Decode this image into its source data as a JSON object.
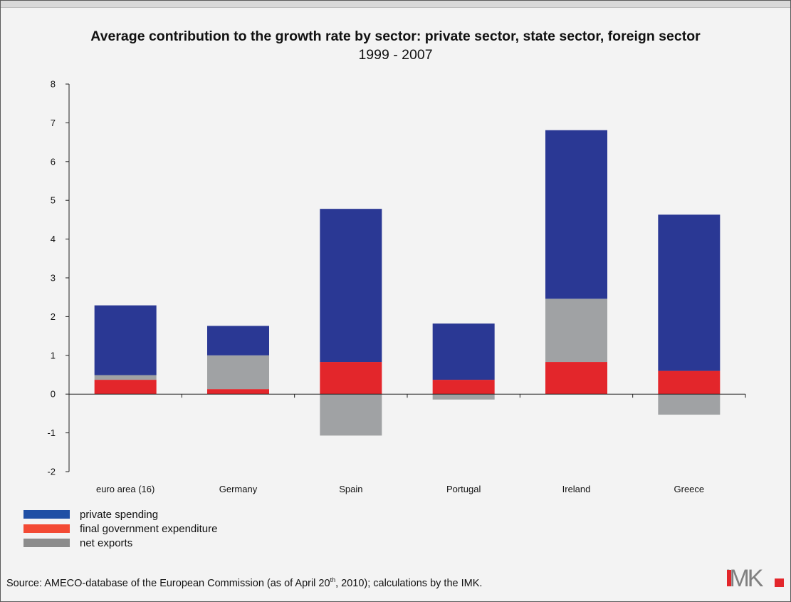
{
  "chart_data": {
    "type": "bar",
    "stacked": true,
    "title": "Average contribution to the growth rate by sector: private sector, state sector, foreign sector",
    "subtitle": "1999 - 2007",
    "categories": [
      "euro area (16)",
      "Germany",
      "Spain",
      "Portugal",
      "Ireland",
      "Greece"
    ],
    "series": [
      {
        "name": "private spending",
        "color": "#2a3894",
        "values": [
          1.8,
          0.76,
          3.95,
          1.45,
          4.35,
          4.03
        ]
      },
      {
        "name": "final government expenditure",
        "color": "#e3262b",
        "values": [
          0.37,
          0.13,
          0.83,
          0.37,
          0.83,
          0.6
        ]
      },
      {
        "name": "net exports",
        "color": "#a0a2a4",
        "values": [
          0.12,
          0.87,
          -1.07,
          -0.14,
          1.63,
          -0.53
        ]
      }
    ],
    "ylim": [
      -2,
      8
    ],
    "yticks": [
      8,
      7,
      6,
      5,
      4,
      3,
      2,
      1,
      0,
      -1,
      -2
    ],
    "xlabel": "",
    "ylabel": "",
    "grid": false,
    "legend_position": "bottom-left"
  },
  "legend_swatch_colors": [
    "#1f4fa5",
    "#f34a34",
    "#8c8c8c"
  ],
  "source": {
    "prefix": "Source: AMECO-database of the European Commission (as of April 20",
    "sup": "th",
    "suffix": ", 2010); calculations by the IMK."
  },
  "logo": {
    "text": "IMK"
  }
}
